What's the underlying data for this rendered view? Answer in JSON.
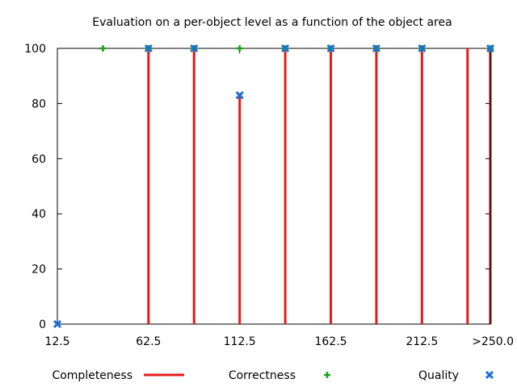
{
  "chart_data": {
    "type": "scatter",
    "title": "Evaluation on a per-object level as a function of the object area",
    "xlabel": "",
    "ylabel": "",
    "x_tick_labels": [
      "12.5",
      "62.5",
      "112.5",
      "162.5",
      "212.5",
      ">250.0"
    ],
    "x_tick_values": [
      12.5,
      62.5,
      112.5,
      162.5,
      212.5,
      250
    ],
    "xlim": [
      12.5,
      250
    ],
    "ylim": [
      0,
      100
    ],
    "y_ticks": [
      "0",
      "20",
      "40",
      "60",
      "80",
      "100"
    ],
    "grid": false,
    "legend_position": "bottom",
    "series": [
      {
        "name": "Completeness",
        "style": "impulses",
        "color": "#e41a1c",
        "x": [
          62.5,
          87.5,
          112.5,
          137.5,
          162.5,
          187.5,
          212.5,
          237.5,
          250
        ],
        "values": [
          100,
          100,
          83,
          100,
          100,
          100,
          100,
          100,
          100
        ]
      },
      {
        "name": "Correctness",
        "style": "points-plus",
        "color": "#1aa51a",
        "x": [
          37.5,
          62.5,
          87.5,
          112.5,
          137.5,
          162.5,
          187.5,
          212.5,
          250
        ],
        "values": [
          100,
          100,
          100,
          100,
          100,
          100,
          100,
          100,
          100
        ]
      },
      {
        "name": "Quality",
        "style": "points-x",
        "color": "#1c6fd6",
        "x": [
          12.5,
          62.5,
          87.5,
          112.5,
          137.5,
          162.5,
          187.5,
          212.5,
          250
        ],
        "values": [
          0,
          100,
          100,
          83,
          100,
          100,
          100,
          100,
          100
        ]
      }
    ]
  }
}
